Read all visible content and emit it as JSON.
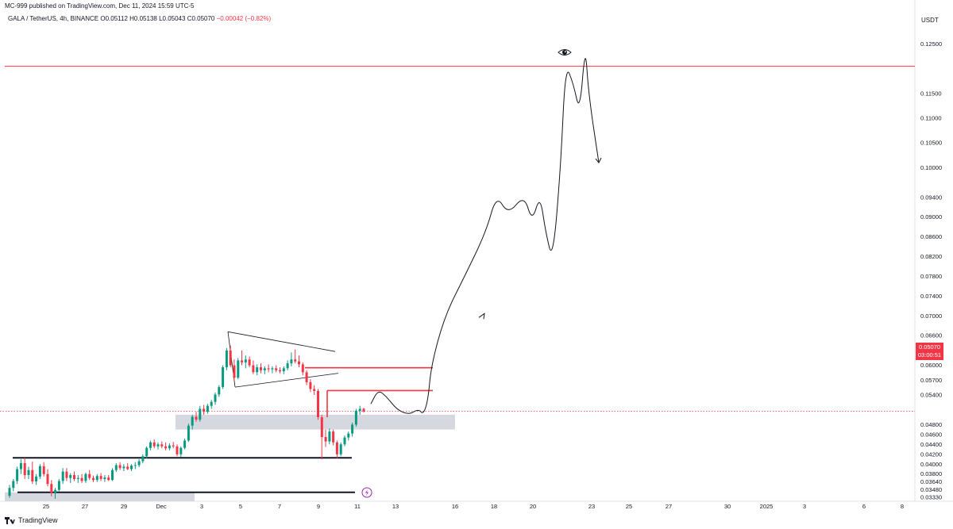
{
  "header": {
    "published": "MC-999 published on TradingView.com, Dec 11, 2024 15:59 UTC-5"
  },
  "symbol": {
    "pair": "GALA / TetherUS, 4h, BINANCE",
    "open": "O0.05112",
    "high": "H0.05138",
    "low": "L0.05043",
    "close": "C0.05070",
    "change": "−0.00042 (−0.82%)"
  },
  "axis": {
    "currency": "USDT"
  },
  "price_tag": {
    "price": "0.05070",
    "countdown": "03:00:51"
  },
  "footer": {
    "brand": "TradingView"
  },
  "colors": {
    "bull": "#089981",
    "bear": "#f23645",
    "zone": "#d1d4dc",
    "line": "#131722"
  },
  "chart_data": {
    "type": "candlestick",
    "ylim": [
      0.0325,
      0.1275
    ],
    "y_ticks": [
      "0.12500",
      "0.11500",
      "0.11000",
      "0.10500",
      "0.10000",
      "0.09400",
      "0.09000",
      "0.08600",
      "0.08200",
      "0.07800",
      "0.07400",
      "0.07000",
      "0.06600",
      "0.06300",
      "0.06000",
      "0.05700",
      "0.05400",
      "0.04800",
      "0.04600",
      "0.04400",
      "0.04200",
      "0.04000",
      "0.03800",
      "0.03640",
      "0.03480",
      "0.03330"
    ],
    "x_ticks": [
      "25",
      "27",
      "29",
      "Dec",
      "3",
      "5",
      "7",
      "9",
      "11",
      "13",
      "16",
      "18",
      "20",
      "23",
      "25",
      "27",
      "30",
      "2025",
      "3",
      "6",
      "8"
    ],
    "current_price": 0.0507,
    "resistance_line": 0.1205,
    "candles": [
      [
        0.0336,
        0.0358,
        0.0332,
        0.0352
      ],
      [
        0.0352,
        0.037,
        0.0345,
        0.0366
      ],
      [
        0.0366,
        0.0395,
        0.036,
        0.039
      ],
      [
        0.039,
        0.041,
        0.038,
        0.0402
      ],
      [
        0.0402,
        0.0413,
        0.037,
        0.0378
      ],
      [
        0.0378,
        0.0395,
        0.037,
        0.0388
      ],
      [
        0.0388,
        0.0405,
        0.036,
        0.0365
      ],
      [
        0.0365,
        0.038,
        0.0358,
        0.0375
      ],
      [
        0.0375,
        0.04,
        0.037,
        0.0396
      ],
      [
        0.0396,
        0.0404,
        0.0375,
        0.038
      ],
      [
        0.038,
        0.039,
        0.0355,
        0.036
      ],
      [
        0.036,
        0.0368,
        0.0335,
        0.0341
      ],
      [
        0.0341,
        0.0352,
        0.033,
        0.0348
      ],
      [
        0.0348,
        0.037,
        0.0344,
        0.0366
      ],
      [
        0.0366,
        0.0392,
        0.036,
        0.0385
      ],
      [
        0.0385,
        0.0392,
        0.0366,
        0.0372
      ],
      [
        0.0372,
        0.0382,
        0.0362,
        0.0378
      ],
      [
        0.0378,
        0.0385,
        0.0366,
        0.037
      ],
      [
        0.037,
        0.0378,
        0.0362,
        0.0372
      ],
      [
        0.0372,
        0.038,
        0.0362,
        0.0366
      ],
      [
        0.0366,
        0.0383,
        0.0362,
        0.038
      ],
      [
        0.038,
        0.0388,
        0.0368,
        0.0372
      ],
      [
        0.0372,
        0.0377,
        0.0364,
        0.0368
      ],
      [
        0.0368,
        0.038,
        0.0364,
        0.0376
      ],
      [
        0.0376,
        0.0382,
        0.0366,
        0.037
      ],
      [
        0.037,
        0.0378,
        0.0364,
        0.0373
      ],
      [
        0.0373,
        0.0378,
        0.0366,
        0.0368
      ],
      [
        0.0368,
        0.0392,
        0.0366,
        0.0388
      ],
      [
        0.0388,
        0.0402,
        0.0384,
        0.0398
      ],
      [
        0.0398,
        0.0404,
        0.0388,
        0.0392
      ],
      [
        0.0392,
        0.04,
        0.0386,
        0.0395
      ],
      [
        0.0395,
        0.0402,
        0.0388,
        0.039
      ],
      [
        0.039,
        0.04,
        0.0386,
        0.0397
      ],
      [
        0.0397,
        0.0404,
        0.039,
        0.0398
      ],
      [
        0.0398,
        0.041,
        0.0394,
        0.0406
      ],
      [
        0.0406,
        0.042,
        0.0402,
        0.0416
      ],
      [
        0.0416,
        0.0436,
        0.0412,
        0.0433
      ],
      [
        0.0433,
        0.0448,
        0.0428,
        0.0444
      ],
      [
        0.0444,
        0.045,
        0.0432,
        0.0436
      ],
      [
        0.0436,
        0.0444,
        0.043,
        0.044
      ],
      [
        0.044,
        0.0446,
        0.0432,
        0.0436
      ],
      [
        0.0436,
        0.0444,
        0.0428,
        0.0432
      ],
      [
        0.0432,
        0.0442,
        0.0428,
        0.0438
      ],
      [
        0.0438,
        0.0445,
        0.0432,
        0.0436
      ],
      [
        0.0436,
        0.044,
        0.0416,
        0.042
      ],
      [
        0.042,
        0.0436,
        0.0414,
        0.0433
      ],
      [
        0.0433,
        0.0452,
        0.043,
        0.0448
      ],
      [
        0.0448,
        0.0482,
        0.0445,
        0.0478
      ],
      [
        0.0478,
        0.05,
        0.047,
        0.0496
      ],
      [
        0.0496,
        0.0506,
        0.0486,
        0.049
      ],
      [
        0.049,
        0.0518,
        0.0486,
        0.0512
      ],
      [
        0.0512,
        0.052,
        0.05,
        0.0506
      ],
      [
        0.0506,
        0.0522,
        0.0502,
        0.0518
      ],
      [
        0.0518,
        0.053,
        0.0512,
        0.0526
      ],
      [
        0.0526,
        0.0545,
        0.052,
        0.0541
      ],
      [
        0.0541,
        0.056,
        0.0536,
        0.0556
      ],
      [
        0.0556,
        0.06,
        0.0552,
        0.0596
      ],
      [
        0.0596,
        0.0635,
        0.059,
        0.063
      ],
      [
        0.063,
        0.064,
        0.0596,
        0.06
      ],
      [
        0.06,
        0.0612,
        0.057,
        0.0575
      ],
      [
        0.0575,
        0.0615,
        0.0572,
        0.061
      ],
      [
        0.061,
        0.063,
        0.06,
        0.0606
      ],
      [
        0.0606,
        0.062,
        0.0594,
        0.0612
      ],
      [
        0.0612,
        0.0618,
        0.0596,
        0.06
      ],
      [
        0.06,
        0.061,
        0.0582,
        0.0586
      ],
      [
        0.0586,
        0.0602,
        0.058,
        0.0596
      ],
      [
        0.0596,
        0.0604,
        0.0584,
        0.059
      ],
      [
        0.059,
        0.0598,
        0.0582,
        0.0594
      ],
      [
        0.0594,
        0.0602,
        0.0586,
        0.0592
      ],
      [
        0.0592,
        0.0598,
        0.0584,
        0.0594
      ],
      [
        0.0594,
        0.06,
        0.0586,
        0.059
      ],
      [
        0.059,
        0.0596,
        0.0584,
        0.0588
      ],
      [
        0.0588,
        0.0598,
        0.0582,
        0.0594
      ],
      [
        0.0594,
        0.061,
        0.059,
        0.0604
      ],
      [
        0.0604,
        0.0626,
        0.0598,
        0.0612
      ],
      [
        0.0612,
        0.0632,
        0.0604,
        0.0608
      ],
      [
        0.0608,
        0.062,
        0.0596,
        0.0602
      ],
      [
        0.0602,
        0.0606,
        0.058,
        0.0586
      ],
      [
        0.0586,
        0.059,
        0.056,
        0.0566
      ],
      [
        0.0566,
        0.0572,
        0.0546,
        0.0552
      ],
      [
        0.0552,
        0.056,
        0.054,
        0.0548
      ],
      [
        0.0548,
        0.0552,
        0.049,
        0.0495
      ],
      [
        0.0495,
        0.05,
        0.041,
        0.0455
      ],
      [
        0.0455,
        0.047,
        0.0435,
        0.0446
      ],
      [
        0.0446,
        0.0472,
        0.044,
        0.0466
      ],
      [
        0.0466,
        0.047,
        0.0438,
        0.0444
      ],
      [
        0.0444,
        0.0448,
        0.0412,
        0.042
      ],
      [
        0.042,
        0.0444,
        0.0416,
        0.044
      ],
      [
        0.044,
        0.0458,
        0.0436,
        0.0454
      ],
      [
        0.0454,
        0.0466,
        0.0448,
        0.0462
      ],
      [
        0.0462,
        0.0484,
        0.0456,
        0.048
      ],
      [
        0.048,
        0.0512,
        0.0476,
        0.0508
      ],
      [
        0.0508,
        0.0518,
        0.05,
        0.0512
      ],
      [
        0.0512,
        0.05138,
        0.05043,
        0.0507
      ]
    ],
    "annotations": {
      "support_lines": [
        0.0413,
        0.0343
      ],
      "resistance_levels": [
        0.0595,
        0.0549
      ],
      "demand_zones": [
        [
          0.047,
          0.05
        ],
        [
          0.0325,
          0.0343
        ]
      ],
      "triangle": {
        "upper": [
          0.0668,
          0.0628
        ],
        "lower": [
          0.0556,
          0.0584
        ]
      },
      "projection_path": [
        0.0522,
        0.055,
        0.0538,
        0.051,
        0.05,
        0.0512,
        0.05,
        0.053,
        0.06,
        0.07,
        0.078,
        0.087,
        0.0945,
        0.0905,
        0.0945,
        0.089,
        0.0945,
        0.087,
        0.081,
        0.1,
        0.121,
        0.117,
        0.111,
        0.125,
        0.115,
        0.101
      ]
    }
  }
}
